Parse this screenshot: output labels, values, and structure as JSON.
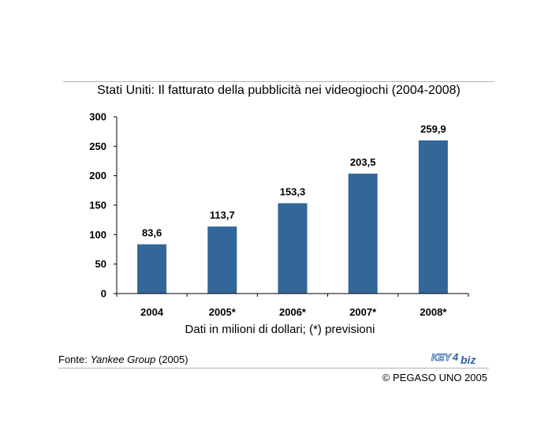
{
  "title": "Stati Uniti: Il fatturato della pubblicità nei videogiochi (2004-2008)",
  "footer": {
    "source_prefix": "Fonte: ",
    "source_name": "Yankee Group",
    "source_suffix": " (2005)",
    "copyright": "© PEGASO UNO 2005",
    "logo_text_left": "KEY",
    "logo_digit": "4",
    "logo_text_right": "biz"
  },
  "colors": {
    "bar": "#336699",
    "axis": "#000000"
  },
  "chart_data": {
    "type": "bar",
    "title": "Stati Uniti: Il fatturato della pubblicità nei videogiochi (2004-2008)",
    "xlabel": "Dati in milioni di dollari; (*) previsioni",
    "ylabel": "",
    "categories": [
      "2004",
      "2005*",
      "2006*",
      "2007*",
      "2008*"
    ],
    "values": [
      83.6,
      113.7,
      153.3,
      203.5,
      259.9
    ],
    "value_labels": [
      "83,6",
      "113,7",
      "153,3",
      "203,5",
      "259,9"
    ],
    "ylim": [
      0,
      300
    ],
    "yticks": [
      0,
      50,
      100,
      150,
      200,
      250,
      300
    ],
    "grid": false,
    "legend": "none"
  }
}
